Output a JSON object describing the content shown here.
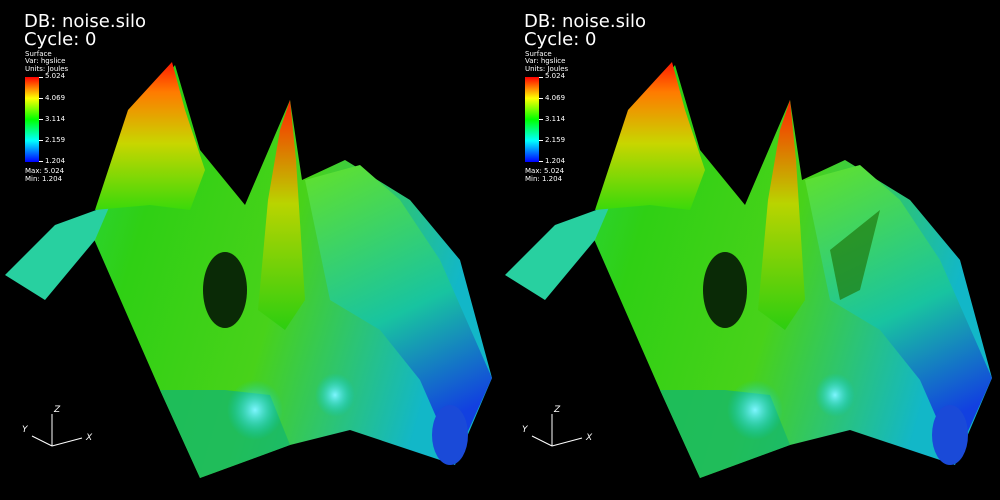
{
  "views": [
    {
      "db_label": "DB: noise.silo",
      "cycle_label": "Cycle: 0",
      "legend": {
        "plot_type": "Surface",
        "var_label": "Var: hgslice",
        "units_label": "Units: Joules",
        "ticks": [
          "5.024",
          "4.069",
          "3.114",
          "2.159",
          "1.204"
        ],
        "max_label": "Max: 5.024",
        "min_label": "Min: 1.204"
      },
      "axes": {
        "z": "Z",
        "y": "Y",
        "x": "X"
      }
    },
    {
      "db_label": "DB: noise.silo",
      "cycle_label": "Cycle: 0",
      "legend": {
        "plot_type": "Surface",
        "var_label": "Var: hgslice",
        "units_label": "Units: Joules",
        "ticks": [
          "5.024",
          "4.069",
          "3.114",
          "2.159",
          "1.204"
        ],
        "max_label": "Max: 5.024",
        "min_label": "Min: 1.204"
      },
      "axes": {
        "z": "Z",
        "y": "Y",
        "x": "X"
      }
    }
  ],
  "colors": {
    "background": "#000000",
    "colormap": [
      "#ff0000",
      "#ffff00",
      "#00ff00",
      "#00ffff",
      "#0000ff"
    ]
  }
}
